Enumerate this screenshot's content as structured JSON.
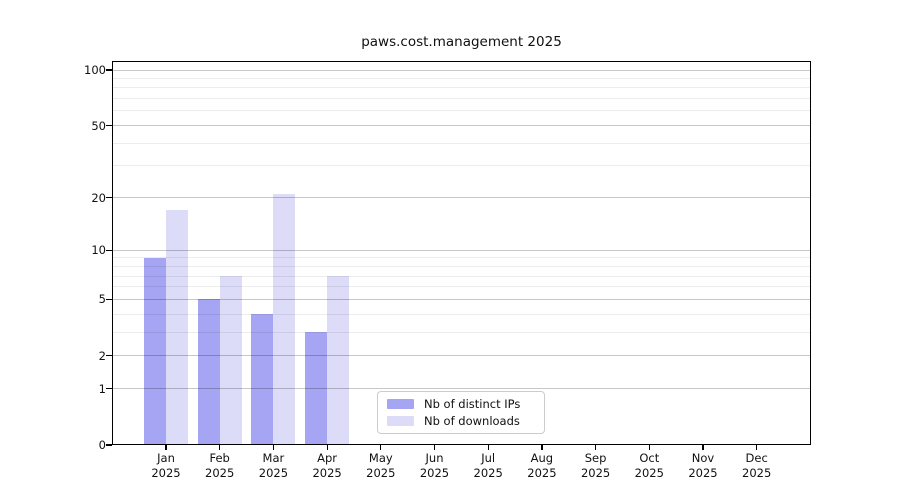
{
  "chart_data": {
    "type": "bar",
    "title": "paws.cost.management 2025",
    "categories": [
      "Jan",
      "Feb",
      "Mar",
      "Apr",
      "May",
      "Jun",
      "Jul",
      "Aug",
      "Sep",
      "Oct",
      "Nov",
      "Dec"
    ],
    "x_tick_second_line": "2025",
    "series": [
      {
        "name": "Nb of distinct IPs",
        "color": "#a5a5f3",
        "values": [
          9,
          5,
          4,
          3,
          0,
          0,
          0,
          0,
          0,
          0,
          0,
          0
        ]
      },
      {
        "name": "Nb of downloads",
        "color": "#dcdcf9",
        "values": [
          17,
          7,
          21,
          7,
          0,
          0,
          0,
          0,
          0,
          0,
          0,
          0
        ]
      }
    ],
    "xlabel": "",
    "ylabel": "",
    "yscale": "log1p",
    "ylim": [
      0,
      112
    ],
    "yticks_major": [
      0,
      1,
      2,
      5,
      10,
      20,
      50,
      100
    ],
    "yticks_minor": [
      3,
      4,
      6,
      7,
      8,
      9,
      30,
      40,
      60,
      70,
      80,
      90
    ],
    "grid": "on",
    "legend_position": "inside-bottom-center",
    "axis_color": "#000000"
  }
}
